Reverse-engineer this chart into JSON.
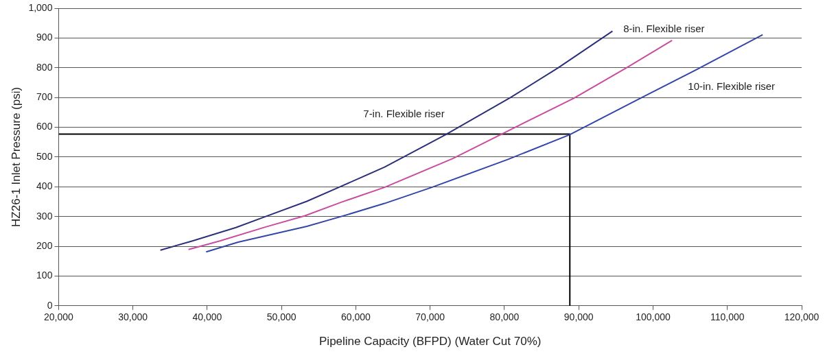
{
  "chart_data": {
    "type": "line",
    "xlabel": "Pipeline Capacity (BFPD) (Water Cut 70%)",
    "ylabel": "HZ26-1 Inlet Pressure (psi)",
    "xlim": [
      20000,
      120000
    ],
    "xticks": [
      {
        "value": 20000,
        "label": "20,000"
      },
      {
        "value": 30000,
        "label": "30,000"
      },
      {
        "value": 40000,
        "label": "40,000"
      },
      {
        "value": 50000,
        "label": "50,000"
      },
      {
        "value": 60000,
        "label": "60,000"
      },
      {
        "value": 70000,
        "label": "70,000"
      },
      {
        "value": 80000,
        "label": "80,000"
      },
      {
        "value": 90000,
        "label": "90,000"
      },
      {
        "value": 100000,
        "label": "100,000"
      },
      {
        "value": 110000,
        "label": "110,000"
      },
      {
        "value": 120000,
        "label": "120,000"
      }
    ],
    "ylim": [
      0,
      1000
    ],
    "yticks": [
      0,
      100,
      200,
      300,
      400,
      500,
      600,
      700,
      800,
      900,
      {
        "value": 1000,
        "label": "1,000"
      }
    ],
    "grid": "y",
    "legend": false,
    "marker": "none",
    "line_style": "solid",
    "series": [
      {
        "color": "#2b2f7a",
        "x": [
          33690,
          38010,
          43850,
          47860,
          53400,
          57700,
          63860,
          71990,
          80820,
          87190,
          94540
        ],
        "values": [
          187,
          218,
          263,
          300,
          351,
          398,
          466,
          574,
          700,
          799,
          923
        ]
      },
      {
        "color": "#c84ca0",
        "x": [
          37480,
          41700,
          47860,
          53090,
          58020,
          63860,
          73050,
          81540,
          89310,
          96380,
          102560
        ],
        "values": [
          189,
          218,
          265,
          302,
          348,
          398,
          495,
          601,
          697,
          799,
          892
        ]
      },
      {
        "color": "#3346a8",
        "x": [
          39850,
          44160,
          53400,
          58020,
          63860,
          70220,
          80470,
          88780,
          98490,
          106260,
          114750
        ],
        "values": [
          181,
          214,
          267,
          300,
          344,
          398,
          492,
          575,
          700,
          799,
          911
        ]
      },
      {
        "color": "#000000",
        "x": [
          20000,
          88800,
          88800
        ],
        "values": [
          577,
          577,
          0
        ]
      }
    ],
    "annotations": [
      "8-in. Flexible riser",
      "7-in. Flexible riser",
      "10-in. Flexible riser"
    ]
  }
}
